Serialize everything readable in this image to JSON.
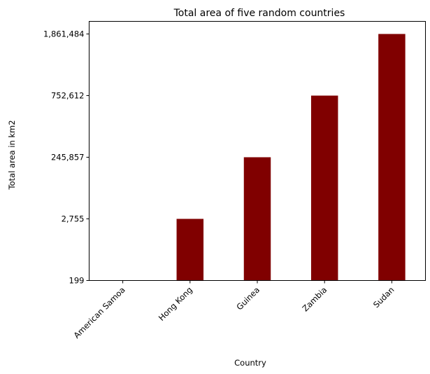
{
  "chart_data": {
    "type": "bar",
    "title": "Total area of five random countries",
    "xlabel": "Country",
    "ylabel": "Total area in km2",
    "categories": [
      "American Samoa",
      "Hong Kong",
      "Guinea",
      "Zambia",
      "Sudan"
    ],
    "values": [
      199,
      2755,
      245857,
      752612,
      1861484
    ],
    "ytick_labels": [
      "199",
      "2,755",
      "245,857",
      "752,612",
      "1,861,484"
    ],
    "y_scale": "categorical (each tick is one of the values, evenly spaced)",
    "bar_color": "#800000",
    "grid": false,
    "legend": "none"
  }
}
